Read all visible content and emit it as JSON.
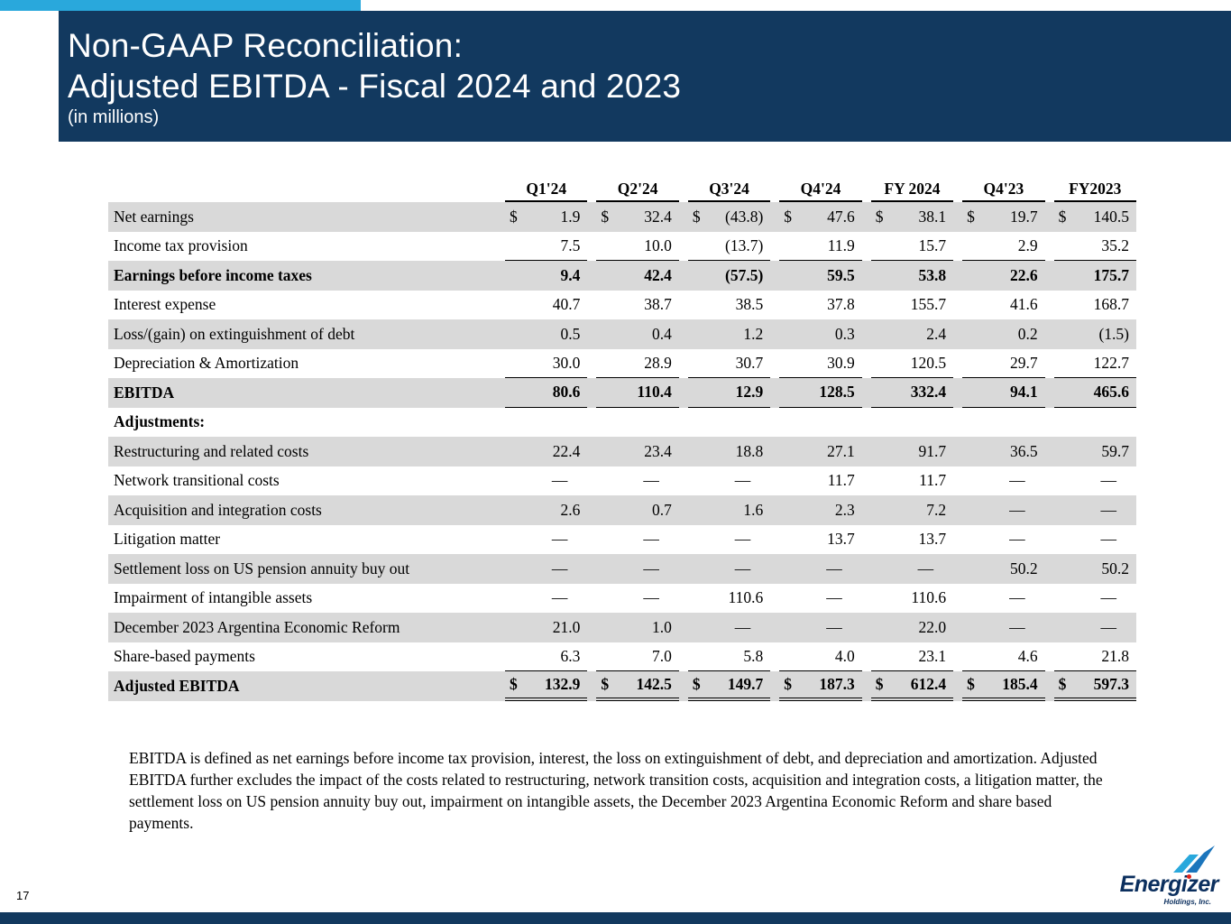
{
  "header": {
    "title_line1": "Non-GAAP Reconciliation:",
    "title_line2": "Adjusted EBITDA - Fiscal 2024 and 2023",
    "subtitle": "(in millions)"
  },
  "table": {
    "columns": [
      "Q1'24",
      "Q2'24",
      "Q3'24",
      "Q4'24",
      "FY 2024",
      "Q4'23",
      "FY2023"
    ],
    "rows": [
      {
        "label": "Net earnings",
        "dollar": true,
        "values": [
          "1.9",
          "32.4",
          "(43.8)",
          "47.6",
          "38.1",
          "19.7",
          "140.5"
        ]
      },
      {
        "label": "Income tax provision",
        "values": [
          "7.5",
          "10.0",
          "(13.7)",
          "11.9",
          "15.7",
          "2.9",
          "35.2"
        ],
        "border": "single"
      },
      {
        "label": "Earnings before income taxes",
        "bold": true,
        "values": [
          "9.4",
          "42.4",
          "(57.5)",
          "59.5",
          "53.8",
          "22.6",
          "175.7"
        ]
      },
      {
        "label": "Interest expense",
        "values": [
          "40.7",
          "38.7",
          "38.5",
          "37.8",
          "155.7",
          "41.6",
          "168.7"
        ]
      },
      {
        "label": "Loss/(gain) on extinguishment of debt",
        "values": [
          "0.5",
          "0.4",
          "1.2",
          "0.3",
          "2.4",
          "0.2",
          "(1.5)"
        ]
      },
      {
        "label": "Depreciation & Amortization",
        "values": [
          "30.0",
          "28.9",
          "30.7",
          "30.9",
          "120.5",
          "29.7",
          "122.7"
        ],
        "border": "single"
      },
      {
        "label": "EBITDA",
        "bold": true,
        "values": [
          "80.6",
          "110.4",
          "12.9",
          "128.5",
          "332.4",
          "94.1",
          "465.6"
        ],
        "border": "single"
      },
      {
        "label": "Adjustments:",
        "bold": true,
        "values": [
          "",
          "",
          "",
          "",
          "",
          "",
          ""
        ]
      },
      {
        "label": "Restructuring and related costs",
        "values": [
          "22.4",
          "23.4",
          "18.8",
          "27.1",
          "91.7",
          "36.5",
          "59.7"
        ]
      },
      {
        "label": "Network transitional costs",
        "values": [
          "—",
          "—",
          "—",
          "11.7",
          "11.7",
          "—",
          "—"
        ]
      },
      {
        "label": "Acquisition and integration costs",
        "values": [
          "2.6",
          "0.7",
          "1.6",
          "2.3",
          "7.2",
          "—",
          "—"
        ]
      },
      {
        "label": "Litigation matter",
        "values": [
          "—",
          "—",
          "—",
          "13.7",
          "13.7",
          "—",
          "—"
        ]
      },
      {
        "label": "Settlement loss on US pension annuity buy out",
        "values": [
          "—",
          "—",
          "—",
          "—",
          "—",
          "50.2",
          "50.2"
        ]
      },
      {
        "label": "Impairment of intangible assets",
        "values": [
          "—",
          "—",
          "110.6",
          "—",
          "110.6",
          "—",
          "—"
        ]
      },
      {
        "label": "December 2023 Argentina Economic Reform",
        "values": [
          "21.0",
          "1.0",
          "—",
          "—",
          "22.0",
          "—",
          "—"
        ]
      },
      {
        "label": "Share-based payments",
        "values": [
          "6.3",
          "7.0",
          "5.8",
          "4.0",
          "23.1",
          "4.6",
          "21.8"
        ],
        "border": "single"
      },
      {
        "label": "Adjusted EBITDA",
        "bold": true,
        "dollar": true,
        "values": [
          "132.9",
          "142.5",
          "149.7",
          "187.3",
          "612.4",
          "185.4",
          "597.3"
        ],
        "border": "double"
      }
    ]
  },
  "footnote": "EBITDA is defined as net earnings before income tax provision, interest, the loss on extinguishment of debt, and depreciation and amortization. Adjusted EBITDA further excludes the impact of the costs related to restructuring, network transition costs, acquisition and integration costs, a litigation matter, the settlement loss on US pension annuity buy out, impairment on intangible assets, the December 2023 Argentina Economic Reform and share based payments.",
  "footer": {
    "page_number": "17",
    "logo_brand": "Energizer",
    "logo_sub": "Holdings, Inc."
  },
  "colors": {
    "header_navy": "#12395F",
    "accent_cyan": "#29A8DC",
    "row_shade_gray": "#D9D9D9",
    "logo_navy": "#0B2F5E",
    "logo_red": "#E1251B",
    "logo_blue_dark": "#1B75BC"
  }
}
